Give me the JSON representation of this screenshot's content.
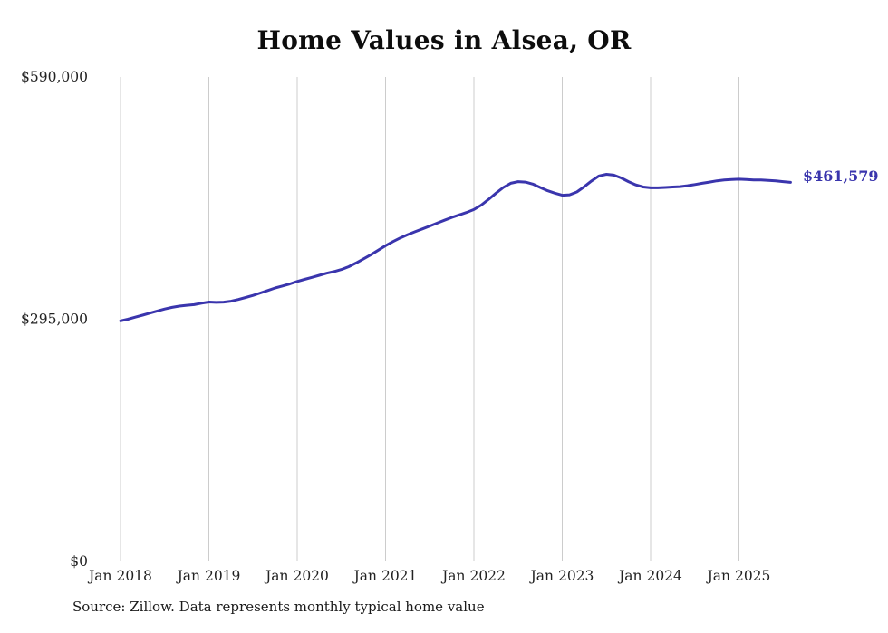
{
  "page": {
    "title": "Home Values in Alsea, OR",
    "end_label": "$461,579",
    "source_note": "Source: Zillow. Data represents monthly typical home value"
  },
  "colors": {
    "background": "#ffffff",
    "line": "#3a35ad",
    "grid": "#cccccc",
    "title_text": "#0d0d0d",
    "tick_text": "#222222",
    "end_label_text": "#3a35ad"
  },
  "chart_data": {
    "type": "line",
    "title": "Home Values in Alsea, OR",
    "xlabel": "",
    "ylabel": "",
    "ylim": [
      0,
      590000
    ],
    "grid": "vertical-only",
    "legend": "none",
    "yticks": [
      {
        "value": 0,
        "label": "$0"
      },
      {
        "value": 295000,
        "label": "$295,000"
      },
      {
        "value": 590000,
        "label": "$590,000"
      }
    ],
    "xticks": [
      {
        "month_index": 0,
        "label": "Jan 2018"
      },
      {
        "month_index": 12,
        "label": "Jan 2019"
      },
      {
        "month_index": 24,
        "label": "Jan 2020"
      },
      {
        "month_index": 36,
        "label": "Jan 2021"
      },
      {
        "month_index": 48,
        "label": "Jan 2022"
      },
      {
        "month_index": 60,
        "label": "Jan 2023"
      },
      {
        "month_index": 72,
        "label": "Jan 2024"
      },
      {
        "month_index": 84,
        "label": "Jan 2025"
      }
    ],
    "series": [
      {
        "name": "Typical home value",
        "start": "Jan 2018",
        "frequency": "monthly",
        "end_value": 461579,
        "end_value_label": "$461,579",
        "values": [
          293000,
          295000,
          297500,
          300000,
          302500,
          305000,
          307500,
          309500,
          311000,
          312000,
          312800,
          314500,
          316000,
          315500,
          315800,
          317000,
          319000,
          321500,
          324000,
          327000,
          330000,
          333000,
          335500,
          338000,
          341000,
          343500,
          346000,
          348500,
          351000,
          353000,
          355500,
          359000,
          363500,
          368500,
          373500,
          379000,
          384500,
          389500,
          394000,
          398000,
          401500,
          405000,
          408500,
          412000,
          415500,
          419000,
          422000,
          425000,
          428500,
          434000,
          441000,
          448500,
          455500,
          460500,
          462500,
          462000,
          459500,
          455500,
          451500,
          448500,
          446000,
          446500,
          450000,
          456500,
          463500,
          469500,
          471500,
          470500,
          467000,
          462500,
          458500,
          456000,
          455000,
          455000,
          455500,
          456000,
          456500,
          457500,
          459000,
          460500,
          462000,
          463500,
          464500,
          465000,
          465500,
          465000,
          464500,
          464500,
          464000,
          463500,
          462500,
          461579
        ]
      }
    ]
  }
}
